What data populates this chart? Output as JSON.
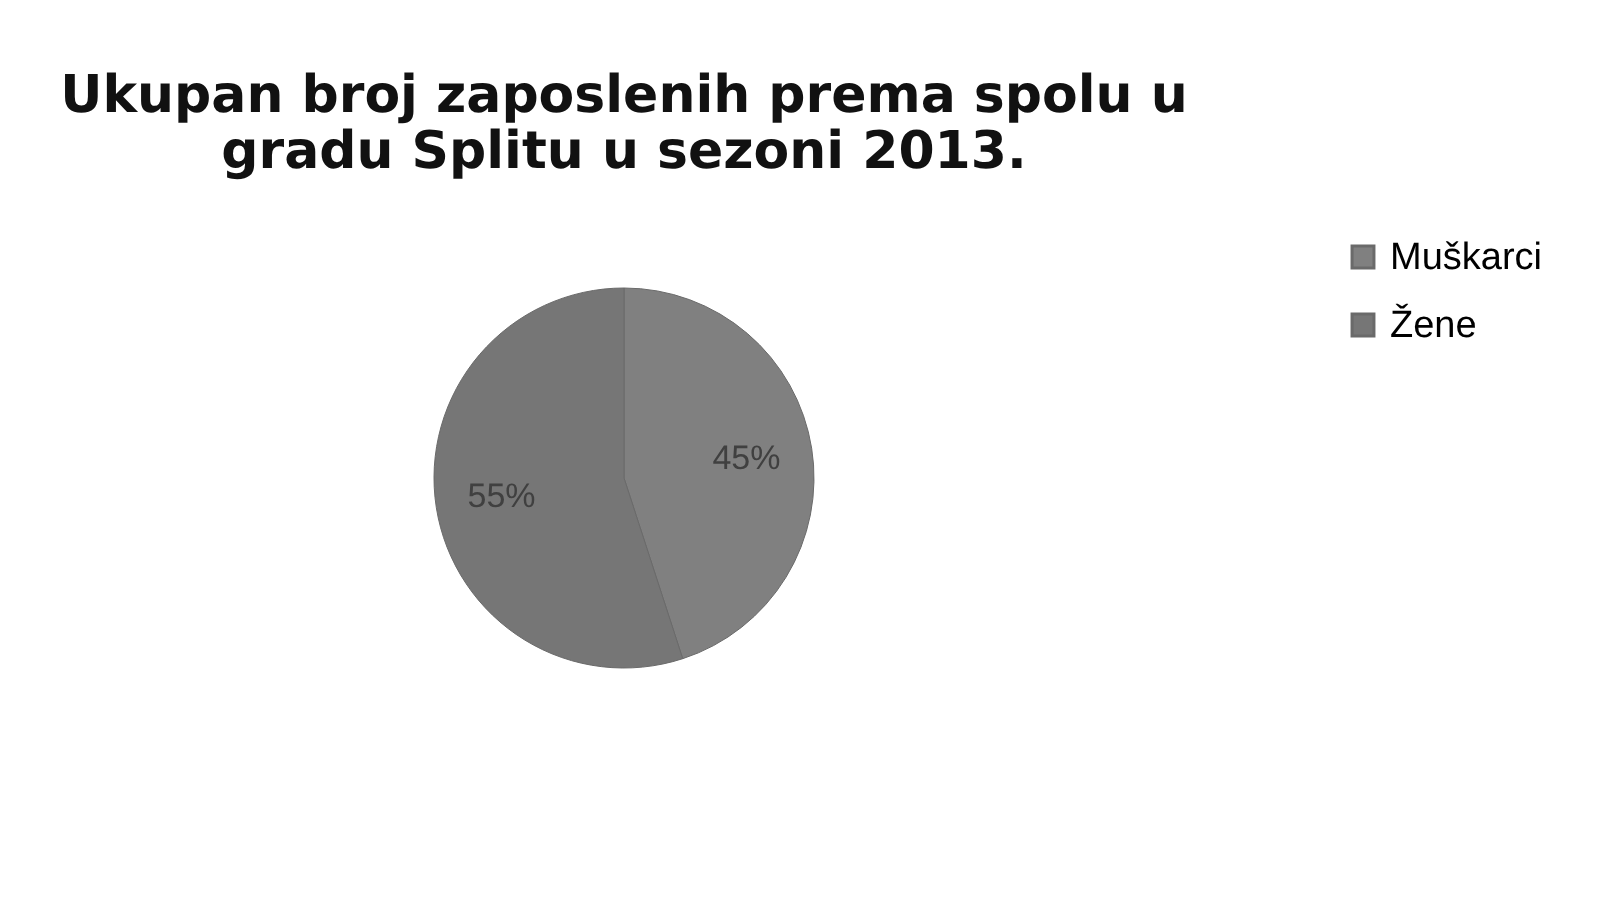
{
  "chart_data": {
    "type": "pie",
    "title": "Ukupan broj zaposlenih prema spolu u gradu Splitu u sezoni 2013.",
    "categories": [
      "Muškarci",
      "Žene"
    ],
    "values": [
      45,
      55
    ],
    "value_labels": [
      "45%",
      "55%"
    ],
    "colors": [
      "#808080",
      "#767676"
    ],
    "legend": "right"
  }
}
